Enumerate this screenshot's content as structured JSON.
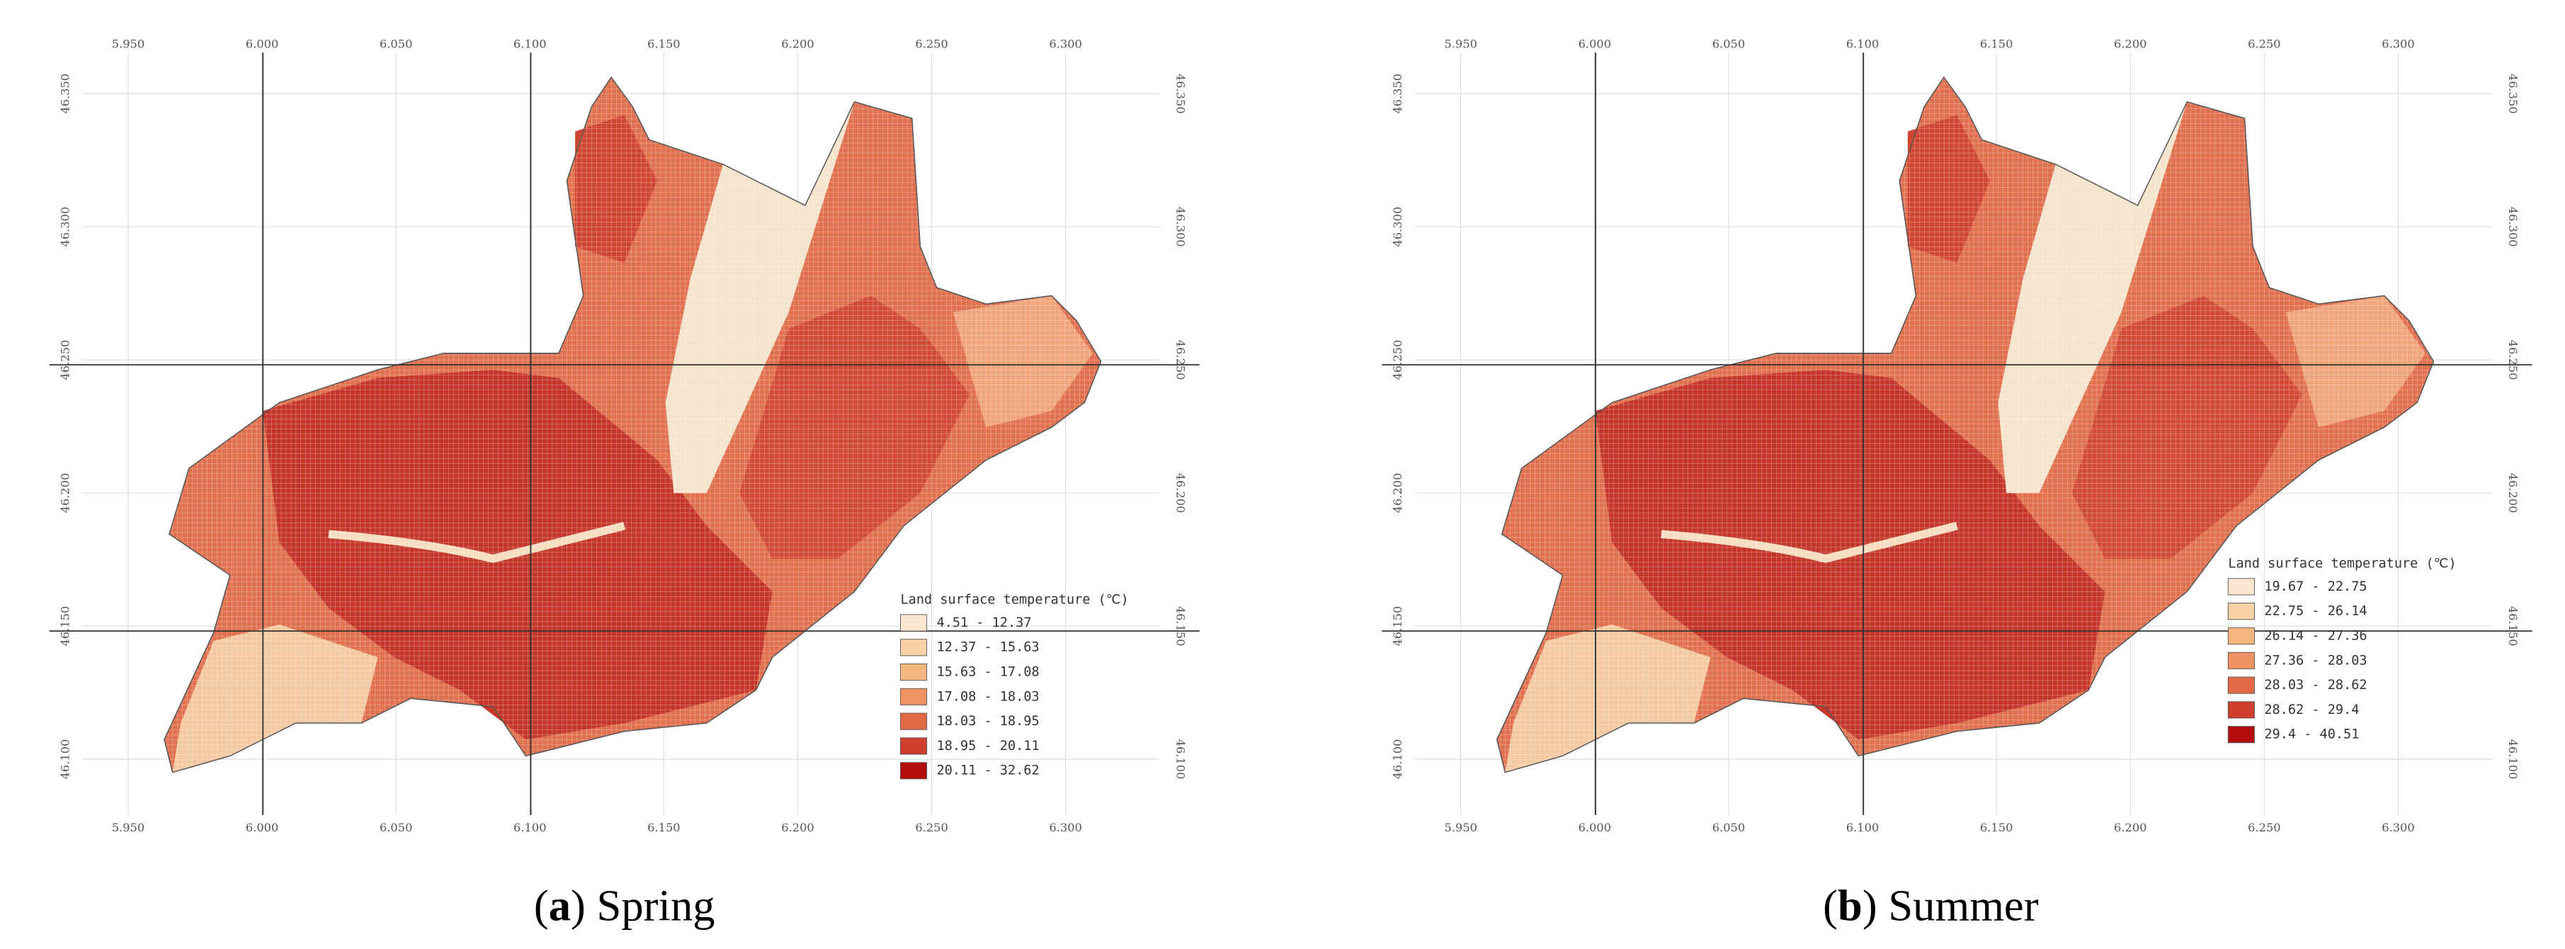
{
  "panels": [
    {
      "caption_parts": [
        "(",
        "a",
        ") Spring"
      ],
      "legend": {
        "title": "Land surface temperature (℃)",
        "items": [
          {
            "label": "4.51 - 12.37",
            "color": "#fbe7cf"
          },
          {
            "label": "12.37 - 15.63",
            "color": "#f8d2a4"
          },
          {
            "label": "15.63 - 17.08",
            "color": "#f4b77e"
          },
          {
            "label": "17.08 - 18.03",
            "color": "#ef9262"
          },
          {
            "label": "18.03 - 18.95",
            "color": "#e36a45"
          },
          {
            "label": "18.95 - 20.11",
            "color": "#cf3e2e"
          },
          {
            "label": "20.11 - 32.62",
            "color": "#b30d0d"
          }
        ]
      },
      "x_ticks": [
        "5.950",
        "6.000",
        "6.050",
        "6.100",
        "6.150",
        "6.200",
        "6.250",
        "6.300"
      ],
      "y_ticks": [
        "46.350",
        "46.300",
        "46.250",
        "46.200",
        "46.150",
        "46.100"
      ]
    },
    {
      "caption_parts": [
        "(",
        "b",
        ") Summer"
      ],
      "legend": {
        "title": "Land surface temperature (℃)",
        "items": [
          {
            "label": "19.67 - 22.75",
            "color": "#fbe7cf"
          },
          {
            "label": "22.75 - 26.14",
            "color": "#f8d2a4"
          },
          {
            "label": "26.14 - 27.36",
            "color": "#f4b77e"
          },
          {
            "label": "27.36 - 28.03",
            "color": "#ef9262"
          },
          {
            "label": "28.03 - 28.62",
            "color": "#e36a45"
          },
          {
            "label": "28.62 - 29.4",
            "color": "#cf3e2e"
          },
          {
            "label": "29.4 - 40.51",
            "color": "#b30d0d"
          }
        ]
      },
      "x_ticks": [
        "5.950",
        "6.000",
        "6.050",
        "6.100",
        "6.150",
        "6.200",
        "6.250",
        "6.300"
      ],
      "y_ticks": [
        "46.350",
        "46.300",
        "46.250",
        "46.200",
        "46.150",
        "46.100"
      ]
    }
  ]
}
